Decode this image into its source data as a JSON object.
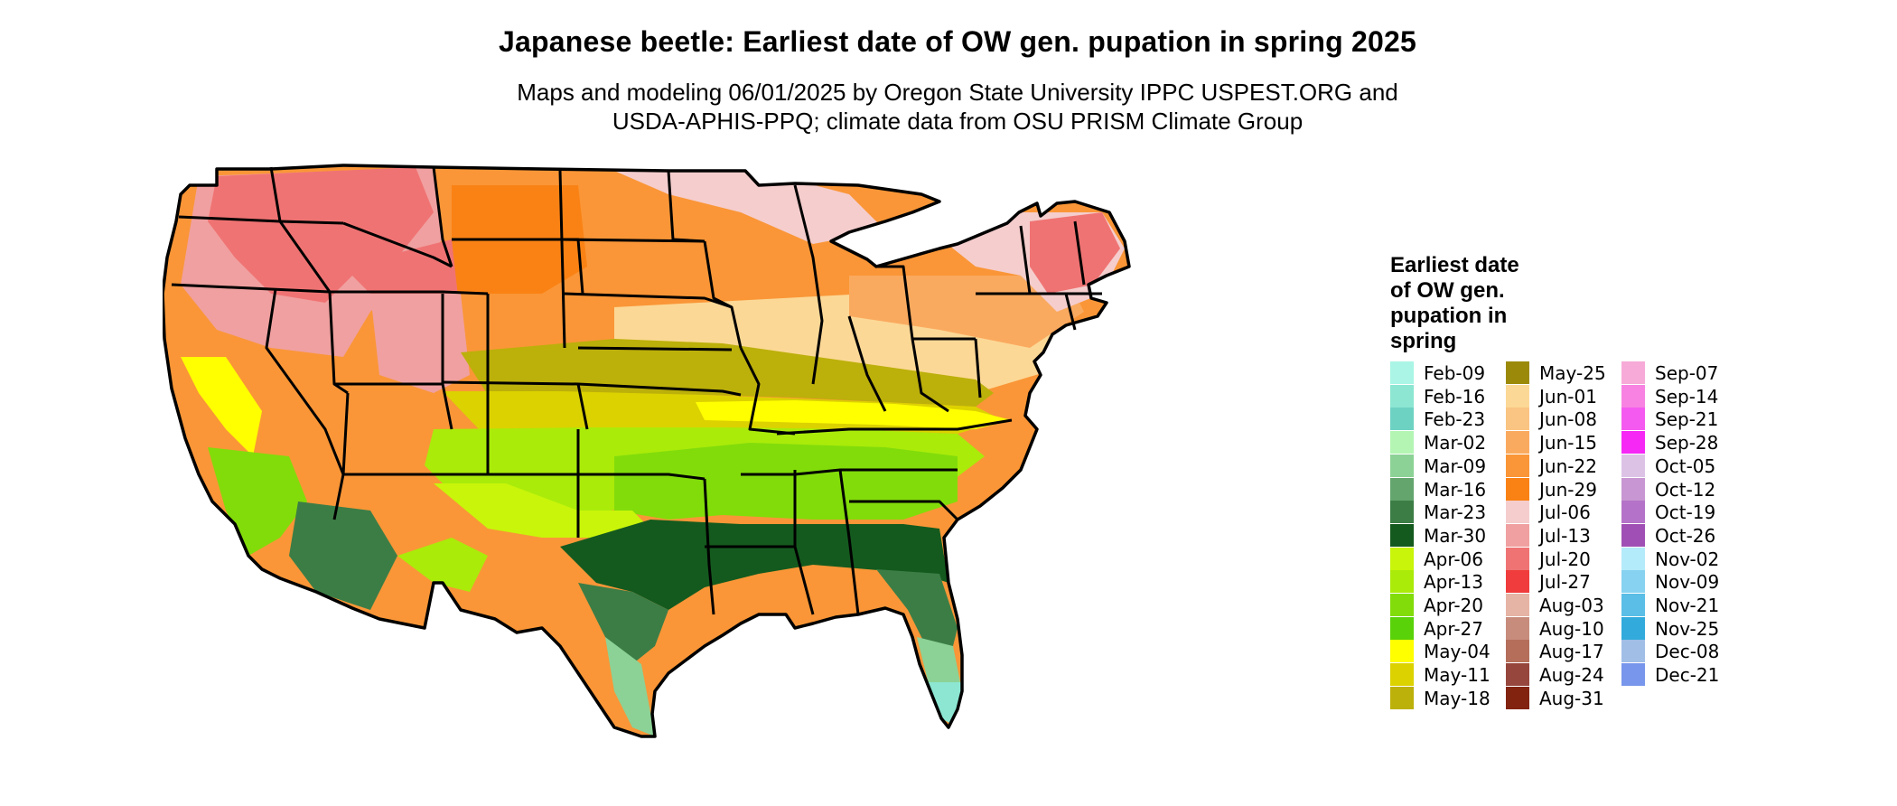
{
  "title": "Japanese beetle: Earliest date of OW gen. pupation in spring 2025",
  "subtitle_lines": [
    "Maps and modeling 06/01/2025 by Oregon State University IPPC USPEST.ORG and",
    "USDA-APHIS-PPQ; climate data from OSU PRISM Climate Group"
  ],
  "legend": {
    "title_lines": [
      "Earliest date",
      "of OW gen.",
      "pupation in",
      "spring"
    ],
    "columns": [
      [
        {
          "label": "Feb-09",
          "color": "#aaf5e6"
        },
        {
          "label": "Feb-16",
          "color": "#8ce6d2"
        },
        {
          "label": "Feb-23",
          "color": "#6ed2c3"
        },
        {
          "label": "Mar-02",
          "color": "#b4f5b4"
        },
        {
          "label": "Mar-09",
          "color": "#8cd296"
        },
        {
          "label": "Mar-16",
          "color": "#64a56e"
        },
        {
          "label": "Mar-23",
          "color": "#3c7d46"
        },
        {
          "label": "Mar-30",
          "color": "#145a1e"
        },
        {
          "label": "Apr-06",
          "color": "#c8f50a"
        },
        {
          "label": "Apr-13",
          "color": "#aaeb0a"
        },
        {
          "label": "Apr-20",
          "color": "#82dc0a"
        },
        {
          "label": "Apr-27",
          "color": "#5ad20a"
        },
        {
          "label": "May-04",
          "color": "#ffff00"
        },
        {
          "label": "May-11",
          "color": "#dcd200"
        },
        {
          "label": "May-18",
          "color": "#bcb00a"
        }
      ],
      [
        {
          "label": "May-25",
          "color": "#9b8a0a"
        },
        {
          "label": "Jun-01",
          "color": "#fcd896"
        },
        {
          "label": "Jun-08",
          "color": "#fac482"
        },
        {
          "label": "Jun-15",
          "color": "#faaa5f"
        },
        {
          "label": "Jun-22",
          "color": "#fa9637"
        },
        {
          "label": "Jun-29",
          "color": "#fa8214"
        },
        {
          "label": "Jul-06",
          "color": "#f5cdcd"
        },
        {
          "label": "Jul-13",
          "color": "#f0a0a0"
        },
        {
          "label": "Jul-20",
          "color": "#f07373"
        },
        {
          "label": "Jul-27",
          "color": "#f03c3c"
        },
        {
          "label": "Aug-03",
          "color": "#e6b4a5"
        },
        {
          "label": "Aug-10",
          "color": "#c88c7d"
        },
        {
          "label": "Aug-17",
          "color": "#b46e5a"
        },
        {
          "label": "Aug-24",
          "color": "#96463c"
        },
        {
          "label": "Aug-31",
          "color": "#82230f"
        }
      ],
      [
        {
          "label": "Sep-07",
          "color": "#f7aad7"
        },
        {
          "label": "Sep-14",
          "color": "#f782e1"
        },
        {
          "label": "Sep-21",
          "color": "#f55af0"
        },
        {
          "label": "Sep-28",
          "color": "#f528f5"
        },
        {
          "label": "Oct-05",
          "color": "#dcc3e6"
        },
        {
          "label": "Oct-12",
          "color": "#c896d2"
        },
        {
          "label": "Oct-19",
          "color": "#b473c8"
        },
        {
          "label": "Oct-26",
          "color": "#a050b4"
        },
        {
          "label": "Nov-02",
          "color": "#b4ebfa"
        },
        {
          "label": "Nov-09",
          "color": "#87d2f0"
        },
        {
          "label": "Nov-21",
          "color": "#5abee6"
        },
        {
          "label": "Nov-25",
          "color": "#32aadc"
        },
        {
          "label": "Dec-08",
          "color": "#a0bee6"
        },
        {
          "label": "Dec-21",
          "color": "#7896eb"
        }
      ]
    ]
  },
  "map": {
    "region": "contiguous United States",
    "state_borders": true,
    "bands": [
      {
        "label": "Feb-16",
        "color": "#8ce6d2"
      },
      {
        "label": "Mar-09",
        "color": "#8cd296"
      },
      {
        "label": "Mar-23",
        "color": "#3c7d46"
      },
      {
        "label": "Mar-30",
        "color": "#145a1e"
      },
      {
        "label": "Apr-06",
        "color": "#c8f50a"
      },
      {
        "label": "Apr-13",
        "color": "#aaeb0a"
      },
      {
        "label": "Apr-20",
        "color": "#82dc0a"
      },
      {
        "label": "May-04",
        "color": "#ffff00"
      },
      {
        "label": "May-11",
        "color": "#dcd200"
      },
      {
        "label": "May-18",
        "color": "#bcb00a"
      },
      {
        "label": "Jun-01",
        "color": "#fcd896"
      },
      {
        "label": "Jun-15",
        "color": "#faaa5f"
      },
      {
        "label": "Jun-22",
        "color": "#fa9637"
      },
      {
        "label": "Jun-29",
        "color": "#fa8214"
      },
      {
        "label": "Jul-06",
        "color": "#f5cdcd"
      },
      {
        "label": "Jul-13",
        "color": "#f0a0a0"
      },
      {
        "label": "Jul-20",
        "color": "#f07373"
      }
    ]
  }
}
